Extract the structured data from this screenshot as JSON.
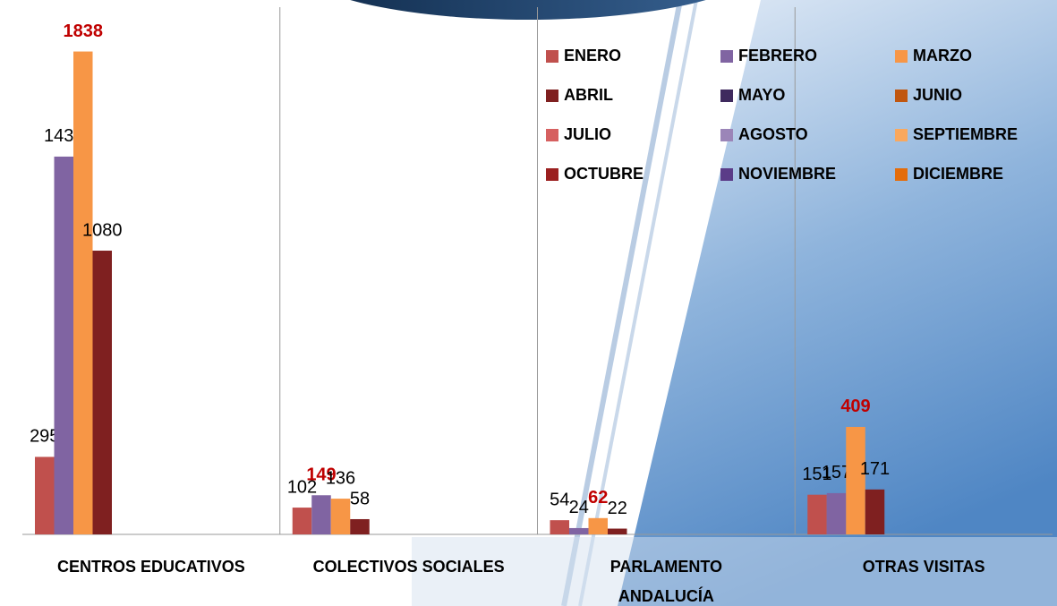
{
  "chart_data": {
    "type": "bar",
    "categories": [
      "CENTROS EDUCATIVOS",
      "COLECTIVOS SOCIALES",
      "PARLAMENTO\nANDALUCÍA",
      "OTRAS VISITAS"
    ],
    "series": [
      {
        "name": "ENERO",
        "color": "#c0504d",
        "values": [
          295,
          102,
          54,
          151
        ]
      },
      {
        "name": "FEBRERO",
        "color": "#8064a2",
        "values": [
          1438,
          149,
          24,
          157
        ]
      },
      {
        "name": "MARZO",
        "color": "#f79646",
        "values": [
          1838,
          136,
          62,
          409
        ]
      },
      {
        "name": "ABRIL",
        "color": "#7f2020",
        "values": [
          1080,
          58,
          22,
          171
        ]
      },
      {
        "name": "MAYO",
        "color": "#3f2a5e",
        "values": [
          null,
          null,
          null,
          null
        ]
      },
      {
        "name": "JUNIO",
        "color": "#c0560f",
        "values": [
          null,
          null,
          null,
          null
        ]
      },
      {
        "name": "JULIO",
        "color": "#d66060",
        "values": [
          null,
          null,
          null,
          null
        ]
      },
      {
        "name": "AGOSTO",
        "color": "#9b85b8",
        "values": [
          null,
          null,
          null,
          null
        ]
      },
      {
        "name": "SEPTIEMBRE",
        "color": "#f9a85e",
        "values": [
          null,
          null,
          null,
          null
        ]
      },
      {
        "name": "OCTUBRE",
        "color": "#9b2020",
        "values": [
          null,
          null,
          null,
          null
        ]
      },
      {
        "name": "NOVIEMBRE",
        "color": "#5b3c88",
        "values": [
          null,
          null,
          null,
          null
        ]
      },
      {
        "name": "DICIEMBRE",
        "color": "#e46c0a",
        "values": [
          null,
          null,
          null,
          null
        ]
      }
    ],
    "ylim": [
      0,
      2000
    ],
    "legend": "top-right",
    "highlight_color": "#c00000"
  }
}
